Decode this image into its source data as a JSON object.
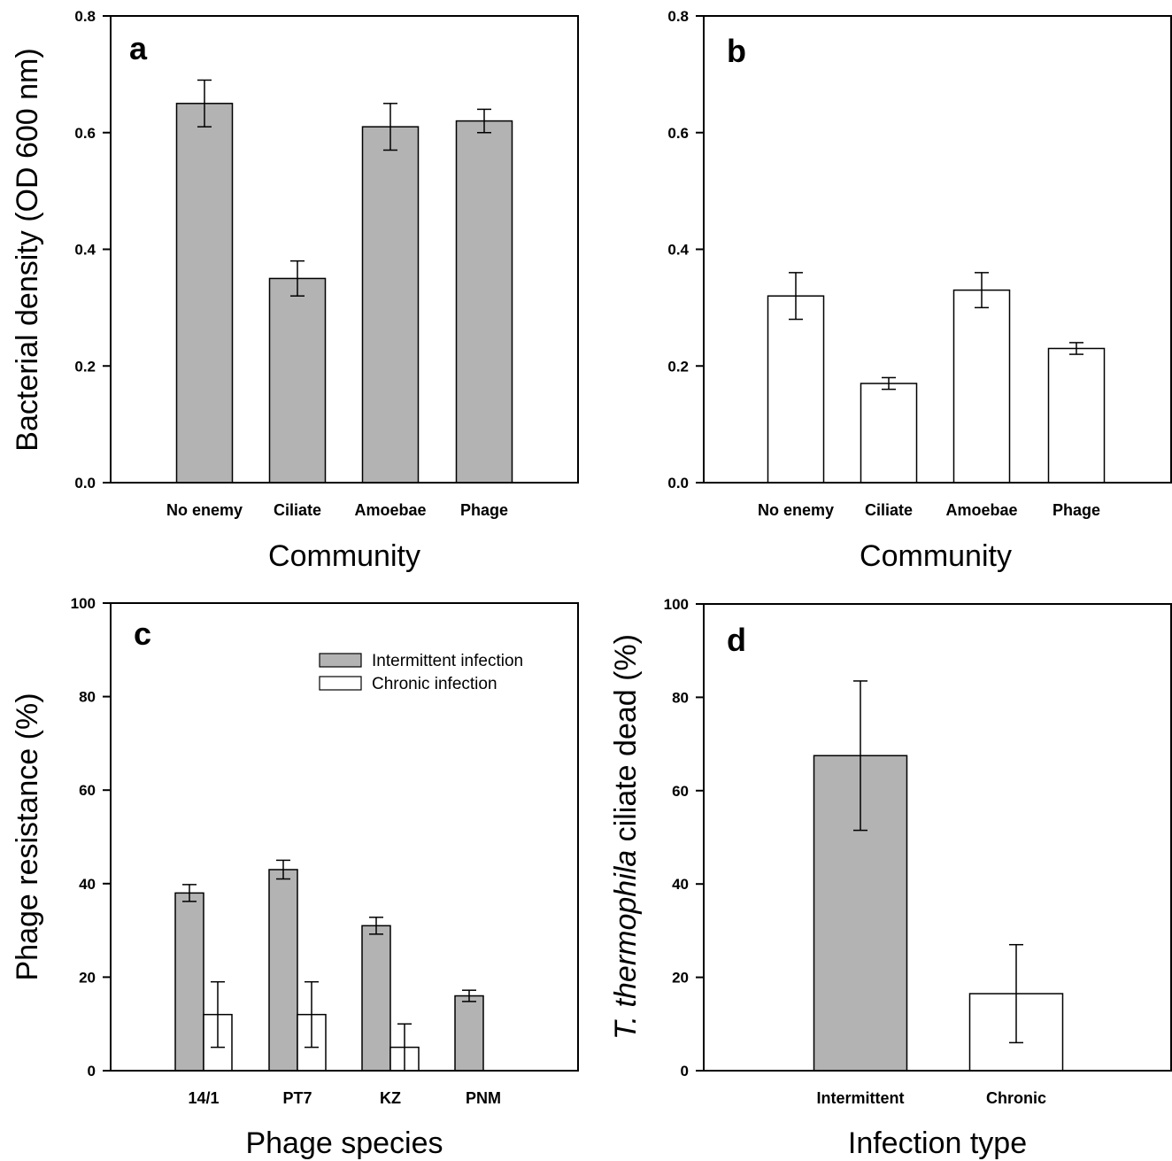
{
  "chart_data": [
    {
      "panel": "a",
      "type": "bar",
      "ylabel": "Bacterial density (OD 600 nm)",
      "xlabel": "Community",
      "ylim": [
        0,
        0.8
      ],
      "yticks": [
        "0.0",
        "0.2",
        "0.4",
        "0.6",
        "0.8"
      ],
      "categories": [
        "No enemy",
        "Ciliate",
        "Amoebae",
        "Phage"
      ],
      "series": [
        {
          "values": [
            0.65,
            0.35,
            0.61,
            0.62
          ],
          "errors": [
            0.04,
            0.03,
            0.04,
            0.02
          ],
          "color": "#b3b3b3"
        }
      ]
    },
    {
      "panel": "b",
      "type": "bar",
      "ylabel": "",
      "xlabel": "Community",
      "ylim": [
        0,
        0.8
      ],
      "yticks": [
        "0.0",
        "0.2",
        "0.4",
        "0.6",
        "0.8"
      ],
      "categories": [
        "No enemy",
        "Ciliate",
        "Amoebae",
        "Phage"
      ],
      "series": [
        {
          "values": [
            0.32,
            0.17,
            0.33,
            0.23
          ],
          "errors": [
            0.04,
            0.01,
            0.03,
            0.01
          ],
          "color": "#ffffff"
        }
      ]
    },
    {
      "panel": "c",
      "type": "bar",
      "ylabel": "Phage resistance (%)",
      "xlabel": "Phage species",
      "ylim": [
        0,
        100
      ],
      "yticks": [
        "0",
        "20",
        "40",
        "60",
        "80",
        "100"
      ],
      "categories": [
        "14/1",
        "PT7",
        "KZ",
        "PNM"
      ],
      "legend": "top-right",
      "series": [
        {
          "name": "Intermittent infection",
          "values": [
            38,
            43,
            31,
            16
          ],
          "errors": [
            1.8,
            2,
            1.8,
            1.2
          ],
          "color": "#b3b3b3"
        },
        {
          "name": "Chronic infection",
          "values": [
            12,
            12,
            5,
            0
          ],
          "errors": [
            7,
            7,
            5,
            0
          ],
          "color": "#ffffff"
        }
      ]
    },
    {
      "panel": "d",
      "type": "bar",
      "ylabel": "T. thermophila ciliate dead (%)",
      "ylabel_italic": "T. thermophila",
      "ylabel_rest": " ciliate dead (%)",
      "xlabel": "Infection type",
      "ylim": [
        0,
        100
      ],
      "yticks": [
        "0",
        "20",
        "40",
        "60",
        "80",
        "100"
      ],
      "categories": [
        "Intermittent",
        "Chronic"
      ],
      "series": [
        {
          "values": [
            67.5,
            16.5
          ],
          "errors": [
            16,
            10.5
          ],
          "colors": [
            "#b3b3b3",
            "#ffffff"
          ]
        }
      ]
    }
  ]
}
